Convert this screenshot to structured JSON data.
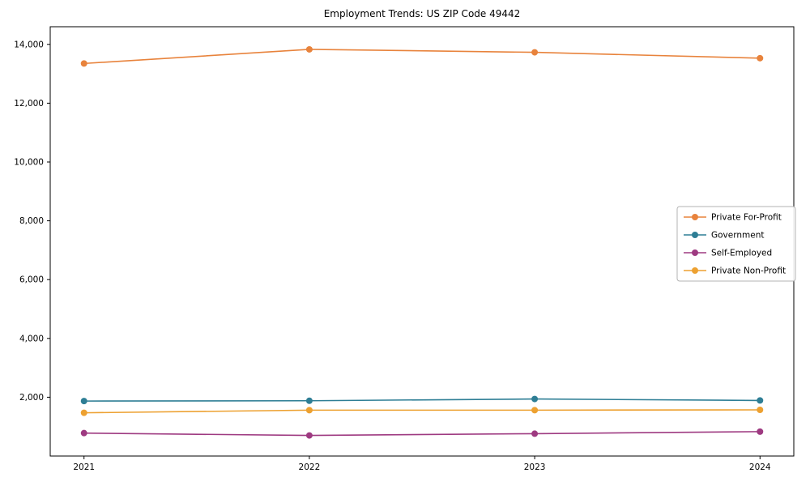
{
  "chart_data": {
    "type": "line",
    "title": "Employment Trends: US ZIP Code 49442",
    "x": [
      2021,
      2022,
      2023,
      2024
    ],
    "series": [
      {
        "name": "Private For-Profit",
        "color": "#e8833c",
        "values": [
          13350,
          13830,
          13730,
          13530
        ]
      },
      {
        "name": "Government",
        "color": "#2e7e95",
        "values": [
          1870,
          1880,
          1940,
          1890
        ]
      },
      {
        "name": "Self-Employed",
        "color": "#9e3a81",
        "values": [
          780,
          700,
          760,
          830
        ]
      },
      {
        "name": "Private Non-Profit",
        "color": "#eda131",
        "values": [
          1470,
          1560,
          1560,
          1570
        ]
      }
    ],
    "yticks": [
      2000,
      4000,
      6000,
      8000,
      10000,
      12000,
      14000
    ],
    "ylim": [
      0,
      14600
    ],
    "xlabel": "",
    "ylabel": "",
    "grid": false,
    "legend_position": "center-right",
    "marker": "circle",
    "axis_color": "#000000",
    "legend_border_color": "#b3b3b3"
  }
}
